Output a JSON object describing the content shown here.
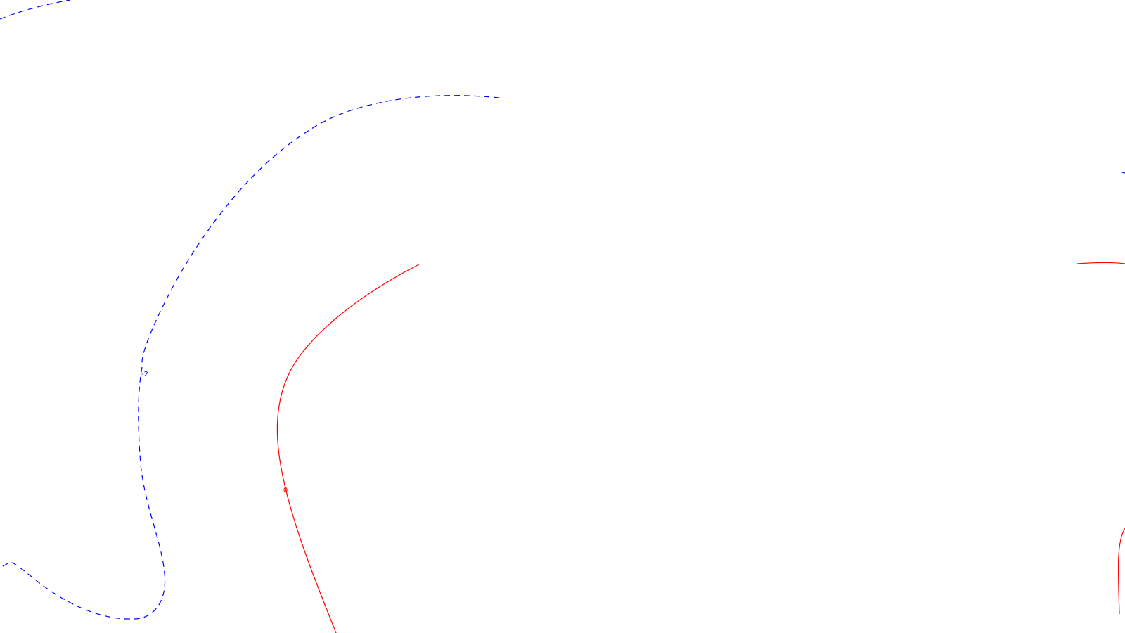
{
  "chart_data": {
    "type": "contour",
    "title": "",
    "xlabel": "",
    "ylabel": "",
    "line_styles": {
      "negative": {
        "color": "#0000ff",
        "dash": "dashed"
      },
      "zero": {
        "color": "#ff0000",
        "dash": "solid"
      }
    },
    "contour_labels": [
      {
        "id": "inline-label-left-dashed",
        "text": "-2",
        "style": "negative"
      },
      {
        "id": "inline-label-center-solid",
        "text": "0",
        "style": "zero"
      }
    ],
    "contours": [
      {
        "id": "contour-top-left-dashed",
        "style": "negative"
      },
      {
        "id": "contour-left-arc-dashed",
        "style": "negative"
      },
      {
        "id": "contour-bottom-left-dashed",
        "style": "negative"
      },
      {
        "id": "contour-center-solid",
        "style": "zero"
      },
      {
        "id": "contour-right-top-solid",
        "style": "zero"
      },
      {
        "id": "contour-right-bottom-solid",
        "style": "zero"
      },
      {
        "id": "contour-right-edge-dashed",
        "style": "negative"
      }
    ]
  }
}
